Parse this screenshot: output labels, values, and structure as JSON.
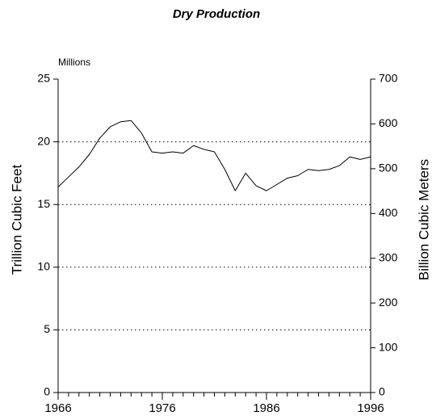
{
  "chart_data": {
    "type": "line",
    "title": "Dry Production",
    "annotation": "Millions",
    "ylabel": "Trillion Cubic Feet",
    "y2label": "Billion Cubic Meters",
    "x": [
      1966,
      1967,
      1968,
      1969,
      1970,
      1971,
      1972,
      1973,
      1974,
      1975,
      1976,
      1977,
      1978,
      1979,
      1980,
      1981,
      1982,
      1983,
      1984,
      1985,
      1986,
      1987,
      1988,
      1989,
      1990,
      1991,
      1992,
      1993,
      1994,
      1995,
      1996
    ],
    "series": [
      {
        "name": "Dry Production",
        "color": "#000000",
        "values": [
          16.4,
          17.2,
          18.0,
          19.0,
          20.3,
          21.2,
          21.6,
          21.7,
          20.7,
          19.2,
          19.1,
          19.2,
          19.1,
          19.7,
          19.4,
          19.2,
          17.8,
          16.1,
          17.5,
          16.5,
          16.1,
          16.6,
          17.1,
          17.3,
          17.8,
          17.7,
          17.8,
          18.1,
          18.8,
          18.6,
          18.8
        ]
      }
    ],
    "xlim": [
      1966,
      1996
    ],
    "xticks": [
      1966,
      1976,
      1986,
      1996
    ],
    "ylim": [
      0,
      25
    ],
    "yticks": [
      0,
      5,
      10,
      15,
      20,
      25
    ],
    "y2lim": [
      0,
      700
    ],
    "y2ticks": [
      0,
      100,
      200,
      300,
      400,
      500,
      600,
      700
    ],
    "grid": true
  }
}
